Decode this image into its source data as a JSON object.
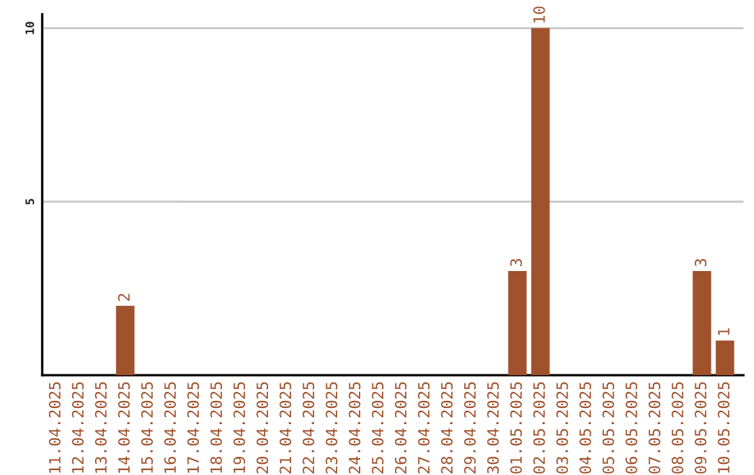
{
  "chart_data": {
    "type": "bar",
    "categories": [
      "11.04.2025",
      "12.04.2025",
      "13.04.2025",
      "14.04.2025",
      "15.04.2025",
      "16.04.2025",
      "17.04.2025",
      "18.04.2025",
      "19.04.2025",
      "20.04.2025",
      "21.04.2025",
      "22.04.2025",
      "23.04.2025",
      "24.04.2025",
      "25.04.2025",
      "26.04.2025",
      "27.04.2025",
      "28.04.2025",
      "29.04.2025",
      "30.04.2025",
      "01.05.2025",
      "02.05.2025",
      "03.05.2025",
      "04.05.2025",
      "05.05.2025",
      "06.05.2025",
      "07.05.2025",
      "08.05.2025",
      "09.05.2025",
      "10.05.2025"
    ],
    "values": [
      0,
      0,
      0,
      2,
      0,
      0,
      0,
      0,
      0,
      0,
      0,
      0,
      0,
      0,
      0,
      0,
      0,
      0,
      0,
      0,
      3,
      10,
      0,
      0,
      0,
      0,
      0,
      0,
      3,
      1
    ],
    "value_labels": [
      null,
      null,
      null,
      "2",
      null,
      null,
      null,
      null,
      null,
      null,
      null,
      null,
      null,
      null,
      null,
      null,
      null,
      null,
      null,
      null,
      "3",
      "10",
      null,
      null,
      null,
      null,
      null,
      null,
      "3",
      "1"
    ],
    "color": "#a0522d",
    "ylim": [
      0,
      10.4
    ],
    "yticks": [
      5,
      10
    ],
    "grid": "y"
  }
}
